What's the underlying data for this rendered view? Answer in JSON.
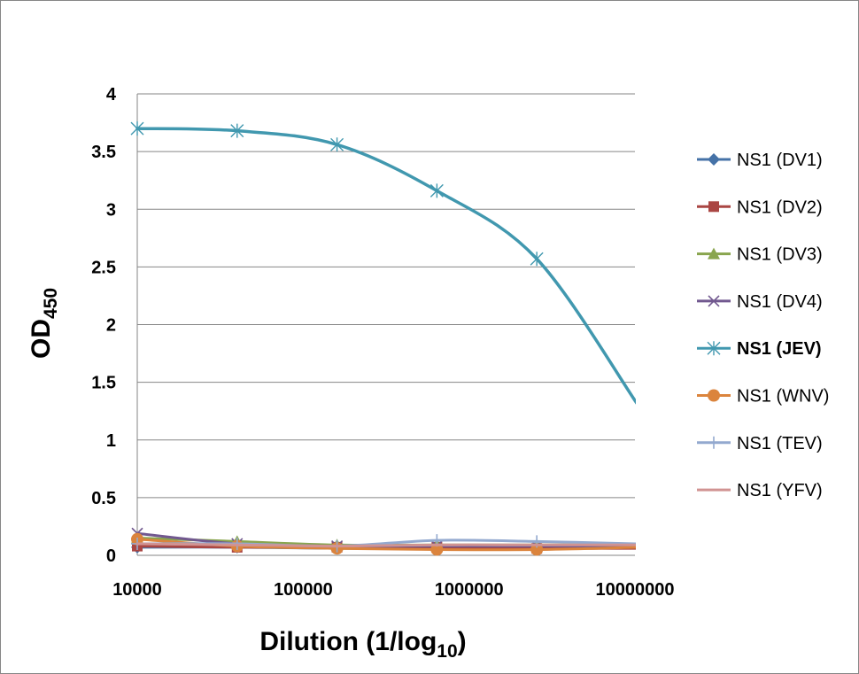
{
  "chart_data": {
    "type": "line",
    "title": "",
    "xlabel": {
      "main": "Dilution (1/log",
      "sub": "10",
      "tail": ")"
    },
    "ylabel": {
      "main": "OD",
      "sub": "450"
    },
    "x_scale": "log",
    "xlim": [
      10000,
      10000000
    ],
    "ylim": [
      0,
      4
    ],
    "x_ticks": [
      10000,
      100000,
      1000000,
      10000000
    ],
    "x_tick_labels": [
      "10000",
      "100000",
      "1000000",
      "10000000"
    ],
    "y_ticks": [
      0,
      0.5,
      1,
      1.5,
      2,
      2.5,
      3,
      3.5,
      4
    ],
    "y_tick_labels": [
      "0",
      "0.5",
      "1",
      "1.5",
      "2",
      "2.5",
      "3",
      "3.5",
      "4"
    ],
    "grid": true,
    "legend_position": "right",
    "x": [
      10000,
      40000,
      160000,
      640000,
      2560000,
      10240000
    ],
    "series": [
      {
        "name": "NS1 (DV1)",
        "color": "#4572A7",
        "marker": "diamond",
        "bold": false,
        "values": [
          0.07,
          0.07,
          0.06,
          0.06,
          0.07,
          0.07
        ]
      },
      {
        "name": "NS1 (DV2)",
        "color": "#AA4643",
        "marker": "square",
        "bold": false,
        "values": [
          0.08,
          0.07,
          0.07,
          0.07,
          0.06,
          0.06
        ]
      },
      {
        "name": "NS1 (DV3)",
        "color": "#89A54E",
        "marker": "triangle",
        "bold": false,
        "values": [
          0.15,
          0.12,
          0.09,
          0.09,
          0.09,
          0.09
        ]
      },
      {
        "name": "NS1 (DV4)",
        "color": "#71588F",
        "marker": "x",
        "bold": false,
        "values": [
          0.19,
          0.1,
          0.08,
          0.08,
          0.08,
          0.08
        ]
      },
      {
        "name": "NS1 (JEV)",
        "color": "#4198AF",
        "marker": "star",
        "bold": true,
        "values": [
          3.7,
          3.68,
          3.56,
          3.16,
          2.57,
          1.32
        ]
      },
      {
        "name": "NS1 (WNV)",
        "color": "#DB843D",
        "marker": "circle",
        "bold": false,
        "values": [
          0.14,
          0.08,
          0.06,
          0.05,
          0.05,
          0.07
        ]
      },
      {
        "name": "NS1 (TEV)",
        "color": "#93A9CF",
        "marker": "plus",
        "bold": false,
        "values": [
          0.1,
          0.1,
          0.08,
          0.13,
          0.12,
          0.1
        ]
      },
      {
        "name": "NS1 (YFV)",
        "color": "#D19392",
        "marker": "none",
        "bold": false,
        "values": [
          0.1,
          0.09,
          0.08,
          0.09,
          0.09,
          0.09
        ]
      }
    ]
  }
}
